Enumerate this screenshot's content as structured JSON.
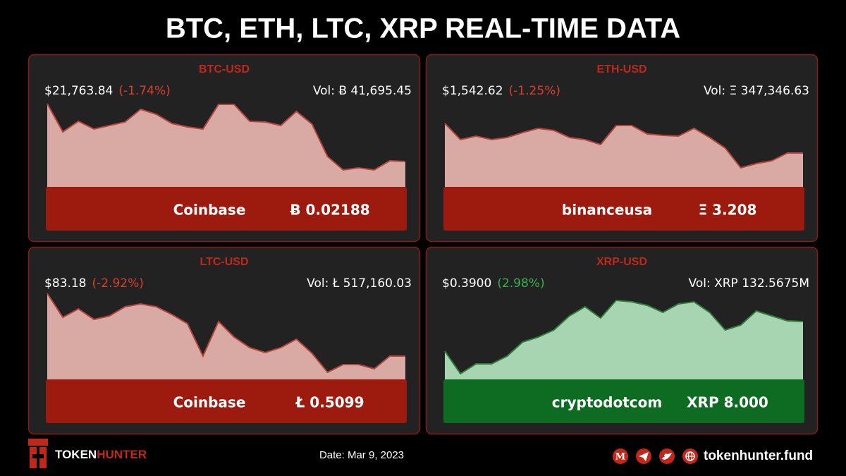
{
  "title": "BTC, ETH, LTC, XRP REAL-TIME DATA",
  "chart_data": [
    {
      "type": "area",
      "title": "BTC-USD",
      "price": "$21,763.84",
      "change": "(-1.74%)",
      "volume": "Vol: Ƀ 41,695.45",
      "exchange": "Coinbase",
      "trade": "Ƀ 0.02188",
      "line_color": "#b5443c",
      "fill_color": "#d9a9a4",
      "bar_color": "#9c1a0e",
      "change_color": "#d9402f",
      "ylim": [
        0,
        125
      ],
      "values": [
        118,
        78,
        93,
        82,
        87,
        92,
        110,
        103,
        90,
        85,
        82,
        117,
        117,
        93,
        92,
        87,
        107,
        89,
        43,
        24,
        27,
        24,
        37,
        36
      ]
    },
    {
      "type": "area",
      "title": "ETH-USD",
      "price": "$1,542.62",
      "change": "(-1.25%)",
      "volume": "Vol: Ξ 347,346.63",
      "exchange": "binanceusa",
      "trade": "Ξ 3.208",
      "line_color": "#b5443c",
      "fill_color": "#d9a9a4",
      "bar_color": "#9c1a0e",
      "change_color": "#d9402f",
      "ylim": [
        0,
        125
      ],
      "values": [
        90,
        67,
        72,
        67,
        70,
        77,
        83,
        80,
        70,
        67,
        60,
        87,
        87,
        75,
        73,
        72,
        83,
        70,
        55,
        27,
        33,
        37,
        48,
        48
      ]
    },
    {
      "type": "area",
      "title": "LTC-USD",
      "price": "$83.18",
      "change": "(-2.92%)",
      "volume": "Vol: Ł 517,160.03",
      "exchange": "Coinbase",
      "trade": "Ł 0.5099",
      "line_color": "#b5443c",
      "fill_color": "#d9a9a4",
      "bar_color": "#9c1a0e",
      "change_color": "#d9402f",
      "ylim": [
        0,
        125
      ],
      "values": [
        122,
        88,
        100,
        85,
        90,
        103,
        107,
        103,
        92,
        79,
        33,
        82,
        60,
        45,
        38,
        45,
        57,
        37,
        10,
        21,
        21,
        15,
        33,
        33
      ]
    },
    {
      "type": "area",
      "title": "XRP-USD",
      "price": "$0.3900",
      "change": "(2.98%)",
      "volume": "Vol: XRP 132.5675M",
      "exchange": "cryptodotcom",
      "trade": "XRP 8.000",
      "line_color": "#2e7d3a",
      "fill_color": "#a8d5b1",
      "bar_color": "#0e6b22",
      "change_color": "#3cb050",
      "ylim": [
        0,
        125
      ],
      "values": [
        40,
        8,
        22,
        22,
        33,
        53,
        60,
        70,
        90,
        103,
        87,
        112,
        110,
        105,
        95,
        107,
        110,
        95,
        70,
        77,
        97,
        90,
        83,
        82
      ]
    }
  ],
  "footer": {
    "brand_first": "TOKEN",
    "brand_second": "HUNTER",
    "date": "Date: Mar 9, 2023",
    "website": "tokenhunter.fund"
  }
}
